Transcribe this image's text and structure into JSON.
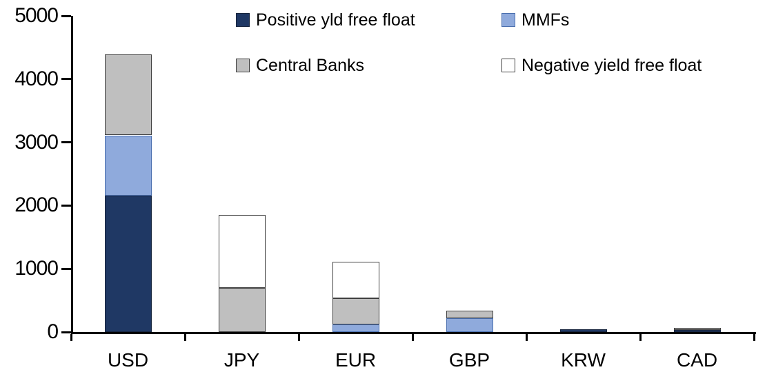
{
  "chart_data": {
    "type": "bar",
    "stacked": true,
    "title": "",
    "xlabel": "",
    "ylabel": "",
    "grid": false,
    "legend_position": "top",
    "ylim": [
      0,
      5000
    ],
    "yticks": [
      0,
      1000,
      2000,
      3000,
      4000,
      5000
    ],
    "ytick_labels": [
      "0",
      "1000",
      "2000",
      "3000",
      "4000",
      "5000"
    ],
    "categories": [
      "USD",
      "JPY",
      "EUR",
      "GBP",
      "KRW",
      "CAD"
    ],
    "series": [
      {
        "name": "Positive yld free float",
        "color": "#1f3864",
        "border_color": "#16243d",
        "values": [
          2160,
          0,
          0,
          0,
          45,
          30
        ]
      },
      {
        "name": "MMFs",
        "color": "#8faadc",
        "border_color": "#4a6fae",
        "values": [
          950,
          0,
          115,
          215,
          0,
          0
        ]
      },
      {
        "name": "Central Banks",
        "color": "#bfbfbf",
        "border_color": "#404040",
        "values": [
          1275,
          700,
          420,
          120,
          0,
          35
        ]
      },
      {
        "name": "Negative yield free float",
        "color": "#ffffff",
        "border_color": "#404040",
        "values": [
          0,
          1150,
          580,
          0,
          0,
          0
        ]
      }
    ],
    "totals_by_category": [
      4385,
      1850,
      1115,
      335,
      45,
      65
    ]
  },
  "colors": {
    "axis": "#000000",
    "background": "#ffffff",
    "positive_yld_free_float": "#1f3864",
    "mmfs": "#8faadc",
    "central_banks": "#bfbfbf",
    "negative_yield_free_float": "#ffffff"
  }
}
